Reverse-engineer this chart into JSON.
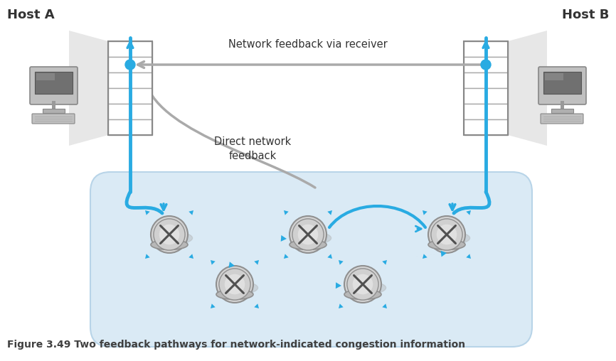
{
  "title": "Figure 3.49 Two feedback pathways for network-indicated congestion information",
  "host_a_label": "Host A",
  "host_b_label": "Host B",
  "feedback_via_receiver": "Network feedback via receiver",
  "direct_feedback": "Direct network\nfeedback",
  "bg_color": "#ffffff",
  "cloud_color": "#daeaf5",
  "cloud_edge_color": "#b8d4e8",
  "blue_color": "#29abe2",
  "gray_arrow_color": "#aaaaaa",
  "router_outer": "#c8c8c8",
  "router_inner": "#a0a0a0",
  "router_x_color": "#555555",
  "table_fill": "#ffffff",
  "table_edge": "#aaaaaa",
  "computer_body": "#b0b0b0",
  "computer_screen": "#777777",
  "shadow_color": "#cccccc",
  "caption_color": "#404040",
  "label_color": "#333333",
  "figsize": [
    8.66,
    5.08
  ],
  "dpi": 100
}
